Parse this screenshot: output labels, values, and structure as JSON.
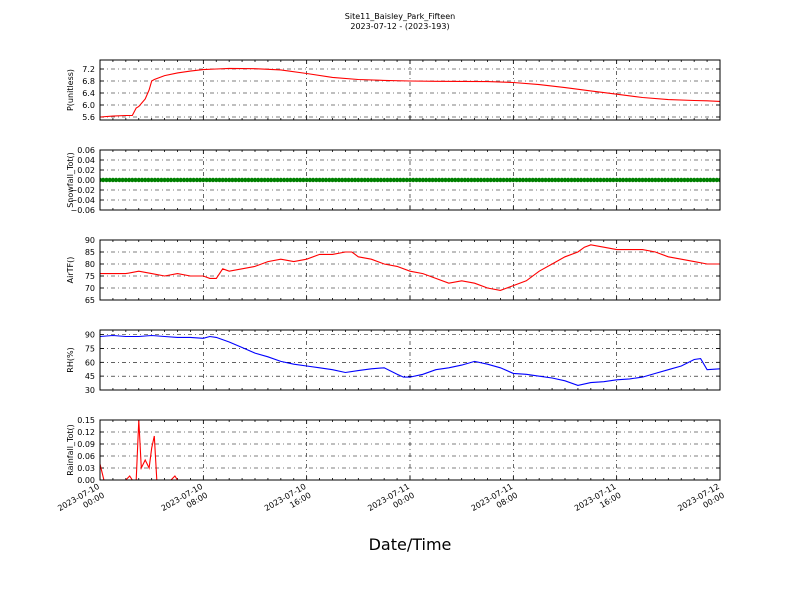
{
  "figure": {
    "title_line1": "Site11_Baisley_Park_Fifteen",
    "title_line2": "2023-07-12 - (2023-193)",
    "xlabel": "Date/Time",
    "x_ticks": [
      {
        "l1": "2023-07-10",
        "l2": "00:00"
      },
      {
        "l1": "2023-07-10",
        "l2": "08:00"
      },
      {
        "l1": "2023-07-10",
        "l2": "16:00"
      },
      {
        "l1": "2023-07-11",
        "l2": "00:00"
      },
      {
        "l1": "2023-07-11",
        "l2": "08:00"
      },
      {
        "l1": "2023-07-11",
        "l2": "16:00"
      },
      {
        "l1": "2023-07-12",
        "l2": "00:00"
      }
    ]
  },
  "chart_data": [
    {
      "type": "line",
      "ylabel": "P(unitless)",
      "ylim": [
        5.5,
        7.5
      ],
      "yticks": [
        "5.6",
        "6.0",
        "6.4",
        "6.8",
        "7.2"
      ],
      "ytick_values": [
        5.6,
        6.0,
        6.4,
        6.8,
        7.2
      ],
      "grid": true,
      "color": "#ff0000",
      "x_hours": [
        0,
        1,
        2,
        2.5,
        2.8,
        3,
        3.5,
        3.8,
        4,
        4.2,
        5,
        6,
        7,
        8,
        9,
        10,
        12,
        14,
        16,
        18,
        20,
        22,
        24,
        26,
        30,
        32,
        34,
        36,
        38,
        40,
        42,
        44,
        46,
        47,
        48
      ],
      "y": [
        5.6,
        5.63,
        5.65,
        5.65,
        5.9,
        5.95,
        6.2,
        6.5,
        6.8,
        6.85,
        6.98,
        7.07,
        7.13,
        7.18,
        7.2,
        7.22,
        7.21,
        7.17,
        7.05,
        6.92,
        6.85,
        6.82,
        6.8,
        6.79,
        6.78,
        6.75,
        6.68,
        6.58,
        6.47,
        6.36,
        6.25,
        6.18,
        6.15,
        6.14,
        6.12
      ]
    },
    {
      "type": "scatter",
      "ylabel": "Snowfall_Tot()",
      "ylim": [
        -0.06,
        0.06
      ],
      "yticks": [
        "−0.06",
        "−0.04",
        "−0.02",
        "0.00",
        "0.02",
        "0.04",
        "0.06"
      ],
      "ytick_values": [
        -0.06,
        -0.04,
        -0.02,
        0.0,
        0.02,
        0.04,
        0.06
      ],
      "grid": true,
      "color": "#008000",
      "x_start_hours": 0,
      "x_end_hours": 48,
      "x_step_hours": 0.25,
      "y_constant": 0.0
    },
    {
      "type": "line",
      "ylabel": "AirTF()",
      "ylim": [
        65,
        90
      ],
      "yticks": [
        "65",
        "70",
        "75",
        "80",
        "85",
        "90"
      ],
      "ytick_values": [
        65,
        70,
        75,
        80,
        85,
        90
      ],
      "grid": true,
      "color": "#ff0000",
      "x_hours": [
        0,
        0.5,
        1,
        2,
        3,
        4,
        5,
        6,
        7,
        8,
        8.5,
        9,
        9.5,
        10,
        11,
        12,
        13,
        14,
        15,
        16,
        17,
        18,
        19,
        19.5,
        20,
        21,
        22,
        23,
        24,
        25,
        26,
        27,
        28,
        29,
        30,
        31,
        32,
        33,
        34,
        35,
        36,
        37,
        37.5,
        38,
        39,
        40,
        41,
        42,
        43,
        44,
        45,
        46,
        47,
        48
      ],
      "y": [
        76,
        76,
        76,
        76,
        77,
        76,
        75,
        76,
        75,
        75,
        74,
        74,
        78,
        77,
        78,
        79,
        81,
        82,
        81,
        82,
        84,
        84,
        85,
        85,
        83,
        82,
        80,
        79,
        77,
        76,
        74,
        72,
        73,
        72,
        70,
        69,
        71,
        73,
        77,
        80,
        83,
        85,
        87,
        88,
        87,
        86,
        86,
        86,
        85,
        83,
        82,
        81,
        80,
        80
      ]
    },
    {
      "type": "line",
      "ylabel": "RH(%)",
      "ylim": [
        30,
        95
      ],
      "yticks": [
        "30",
        "45",
        "60",
        "75",
        "90"
      ],
      "ytick_values": [
        30,
        45,
        60,
        75,
        90
      ],
      "grid": true,
      "color": "#0000ff",
      "x_hours": [
        0,
        1,
        2,
        3,
        4,
        5,
        6,
        7,
        8,
        8.5,
        9,
        10,
        11,
        12,
        13,
        14,
        15,
        16,
        17,
        18,
        19,
        20,
        21,
        22,
        23,
        23.5,
        24,
        25,
        26,
        27,
        28,
        29,
        30,
        31,
        32,
        33,
        34,
        35,
        36,
        37,
        38,
        39,
        40,
        41,
        42,
        43,
        44,
        45,
        46,
        46.5,
        47,
        48
      ],
      "y": [
        88,
        89,
        88,
        88,
        89,
        88,
        87,
        87,
        86,
        88,
        87,
        82,
        76,
        70,
        66,
        61,
        58,
        56,
        54,
        52,
        49,
        51,
        53,
        54,
        47,
        44,
        44,
        47,
        52,
        54,
        57,
        61,
        58,
        54,
        48,
        47,
        45,
        43,
        40,
        35,
        38,
        39,
        41,
        42,
        44,
        48,
        52,
        56,
        63,
        64,
        52,
        53
      ]
    },
    {
      "type": "line",
      "ylabel": "Rainfall_Tot()",
      "ylim": [
        0,
        0.15
      ],
      "yticks": [
        "0.00",
        "0.03",
        "0.06",
        "0.09",
        "0.12",
        "0.15"
      ],
      "ytick_values": [
        0.0,
        0.03,
        0.06,
        0.09,
        0.12,
        0.15
      ],
      "grid": true,
      "color": "#ff0000",
      "x_hours": [
        0,
        0.3,
        0.5,
        1,
        1.5,
        2,
        2.3,
        2.5,
        2.8,
        3,
        3.2,
        3.5,
        3.8,
        4,
        4.2,
        4.4,
        4.6,
        5,
        5.5,
        5.8,
        6,
        48
      ],
      "y": [
        0.04,
        0.0,
        0.0,
        0.0,
        0.0,
        0.0,
        0.01,
        0.0,
        0.0,
        0.15,
        0.03,
        0.05,
        0.03,
        0.08,
        0.11,
        0.0,
        0.0,
        0.0,
        0.0,
        0.01,
        0.0,
        0.0
      ]
    }
  ]
}
